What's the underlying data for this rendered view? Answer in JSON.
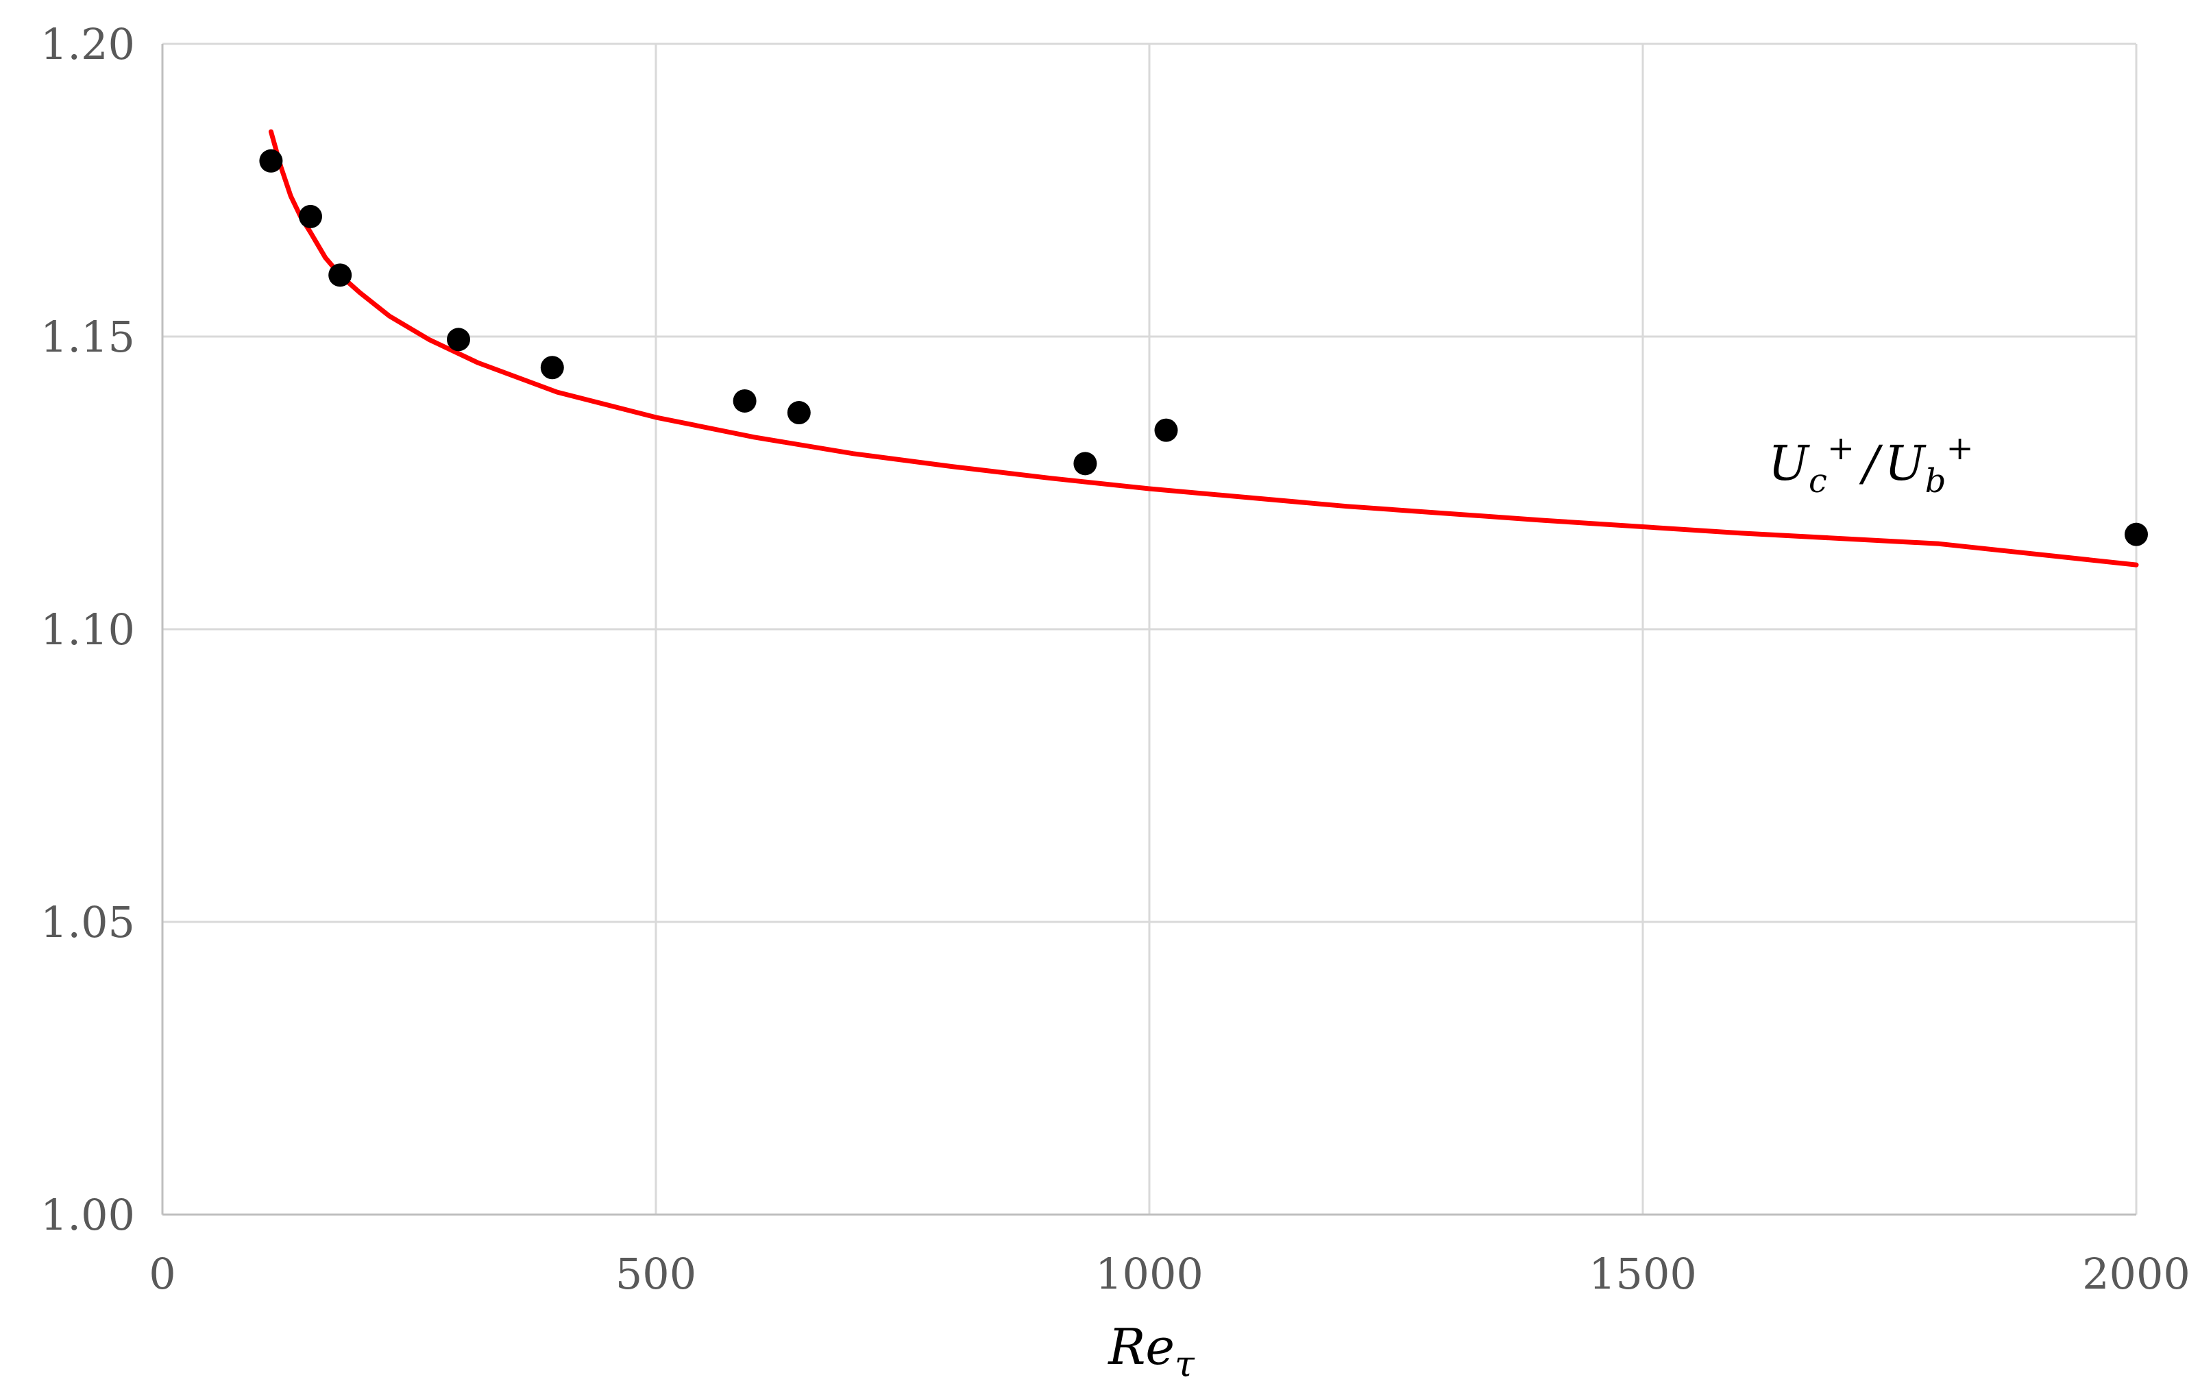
{
  "chart_data": {
    "type": "scatter",
    "xlim": [
      0,
      2000
    ],
    "ylim": [
      1.0,
      1.2
    ],
    "x_ticks": [
      "0",
      "500",
      "1000",
      "1500",
      "2000"
    ],
    "y_ticks": [
      "1.00",
      "1.05",
      "1.10",
      "1.15",
      "1.20"
    ],
    "grid": true,
    "xlabel": {
      "main": "Re",
      "sub": "τ"
    },
    "annotation": {
      "u1": "U",
      "s1": "c",
      "p1": "+",
      "slash": "/",
      "u2": "U",
      "s2": "b",
      "p2": "+"
    },
    "colors": {
      "points": "#000000",
      "curve": "#ff0000",
      "grid": "#d9d9d9",
      "axes": "#bfbfbf"
    },
    "series": [
      {
        "kind": "points",
        "x": [
          110,
          150,
          180,
          300,
          395,
          590,
          645,
          935,
          1017,
          2000
        ],
        "y": [
          1.18,
          1.1705,
          1.1605,
          1.1495,
          1.1447,
          1.139,
          1.137,
          1.1283,
          1.134,
          1.1162
        ]
      },
      {
        "kind": "curve",
        "x": [
          110,
          120,
          130,
          140,
          150,
          165,
          180,
          200,
          230,
          270,
          320,
          400,
          500,
          600,
          700,
          800,
          900,
          1000,
          1200,
          1400,
          1600,
          1800,
          2000
        ],
        "y": [
          1.185,
          1.179,
          1.174,
          1.1705,
          1.1678,
          1.1635,
          1.1605,
          1.1575,
          1.1535,
          1.1495,
          1.1455,
          1.1405,
          1.1362,
          1.1328,
          1.13,
          1.1278,
          1.1258,
          1.124,
          1.121,
          1.1186,
          1.1164,
          1.1146,
          1.111
        ]
      }
    ]
  }
}
